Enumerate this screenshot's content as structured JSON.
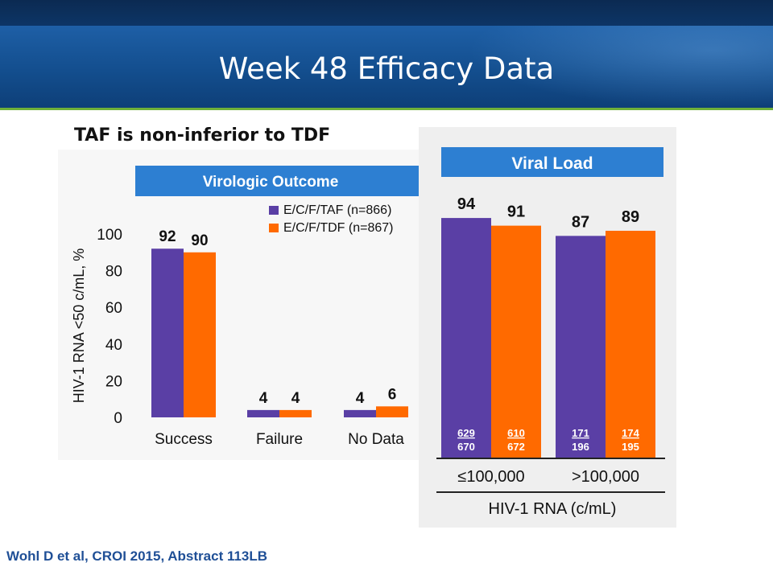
{
  "slide": {
    "title": "Week 48 Efficacy Data",
    "subtitle": "TAF is non-inferior to TDF",
    "citation": "Wohl D et al, CROI 2015, Abstract 113LB"
  },
  "colors": {
    "taf": "#5a3fa5",
    "tdf": "#ff6a00",
    "panel_header": "#2d7fd2",
    "citation": "#1f4f96"
  },
  "chart_data": [
    {
      "type": "bar",
      "title": "Virologic Outcome",
      "ylabel": "HIV-1 RNA <50 c/mL, %",
      "xlabel": "",
      "ylim": [
        0,
        100
      ],
      "yticks": [
        0,
        20,
        40,
        60,
        80,
        100
      ],
      "categories": [
        "Success",
        "Failure",
        "No Data"
      ],
      "series": [
        {
          "name": "E/C/F/TAF (n=866)",
          "values": [
            92,
            4,
            4
          ]
        },
        {
          "name": "E/C/F/TDF (n=867)",
          "values": [
            90,
            4,
            6
          ]
        }
      ],
      "legend": "top-right",
      "grid": false
    },
    {
      "type": "bar",
      "title": "Viral Load",
      "xlabel": "HIV-1 RNA (c/mL)",
      "ylabel": "",
      "ylim": [
        0,
        100
      ],
      "categories": [
        "≤100,000",
        ">100,000"
      ],
      "series": [
        {
          "values": [
            94,
            87
          ],
          "counts": [
            [
              "629",
              "670"
            ],
            [
              "171",
              "196"
            ]
          ]
        },
        {
          "values": [
            91,
            89
          ],
          "counts": [
            [
              "610",
              "672"
            ],
            [
              "174",
              "195"
            ]
          ]
        }
      ],
      "grid": false
    }
  ]
}
